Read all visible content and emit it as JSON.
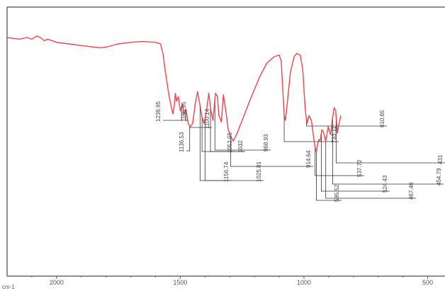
{
  "chart_data": {
    "type": "line",
    "title": "",
    "xlabel": "cm-1",
    "ylabel": "",
    "x_reversed": true,
    "xlim": [
      2200,
      430
    ],
    "ylim": [
      0,
      100
    ],
    "grid": false,
    "line_color": "#e8323a",
    "x_ticks": [
      {
        "value": 2000,
        "label": "2000"
      },
      {
        "value": 1500,
        "label": "1500"
      },
      {
        "value": 1000,
        "label": "1000"
      },
      {
        "value": 500,
        "label": "500"
      }
    ],
    "series": [
      {
        "points": [
          [
            2200,
            92
          ],
          [
            2150,
            91
          ],
          [
            2120,
            92
          ],
          [
            2100,
            91
          ],
          [
            2080,
            93
          ],
          [
            2065,
            92
          ],
          [
            2050,
            90
          ],
          [
            2035,
            91
          ],
          [
            2000,
            89
          ],
          [
            1950,
            88
          ],
          [
            1900,
            87
          ],
          [
            1850,
            86
          ],
          [
            1820,
            85.5
          ],
          [
            1800,
            86
          ],
          [
            1750,
            88
          ],
          [
            1700,
            89
          ],
          [
            1650,
            89.5
          ],
          [
            1600,
            89
          ],
          [
            1580,
            88
          ],
          [
            1570,
            82
          ],
          [
            1560,
            70
          ],
          [
            1545,
            55
          ],
          [
            1530,
            44
          ],
          [
            1525,
            48
          ],
          [
            1520,
            57
          ],
          [
            1515,
            52
          ],
          [
            1508,
            55
          ],
          [
            1500,
            46
          ],
          [
            1492,
            50
          ],
          [
            1485,
            44
          ],
          [
            1477,
            47
          ],
          [
            1468,
            38
          ],
          [
            1460,
            36
          ],
          [
            1450,
            38
          ],
          [
            1440,
            50
          ],
          [
            1430,
            58
          ],
          [
            1422,
            51
          ],
          [
            1412,
            42
          ],
          [
            1404,
            38
          ],
          [
            1394,
            46
          ],
          [
            1385,
            57
          ],
          [
            1376,
            46
          ],
          [
            1368,
            40
          ],
          [
            1358,
            57
          ],
          [
            1350,
            55
          ],
          [
            1344,
            43
          ],
          [
            1334,
            39
          ],
          [
            1326,
            56
          ],
          [
            1316,
            46
          ],
          [
            1306,
            34
          ],
          [
            1296,
            30
          ],
          [
            1286,
            27
          ],
          [
            1270,
            32
          ],
          [
            1250,
            40
          ],
          [
            1220,
            52
          ],
          [
            1180,
            67
          ],
          [
            1150,
            76
          ],
          [
            1120,
            80
          ],
          [
            1100,
            81
          ],
          [
            1092,
            77
          ],
          [
            1086,
            60
          ],
          [
            1080,
            43
          ],
          [
            1075,
            40
          ],
          [
            1068,
            50
          ],
          [
            1055,
            70
          ],
          [
            1040,
            80
          ],
          [
            1030,
            82
          ],
          [
            1015,
            81
          ],
          [
            1005,
            72
          ],
          [
            995,
            47
          ],
          [
            988,
            38
          ],
          [
            980,
            43
          ],
          [
            970,
            40
          ],
          [
            962,
            30
          ],
          [
            955,
            23
          ],
          [
            950,
            20
          ],
          [
            945,
            25
          ],
          [
            940,
            28
          ],
          [
            935,
            27
          ],
          [
            928,
            34
          ],
          [
            922,
            33
          ],
          [
            912,
            27
          ],
          [
            902,
            36
          ],
          [
            892,
            31
          ],
          [
            884,
            42
          ],
          [
            878,
            48
          ],
          [
            872,
            46
          ],
          [
            865,
            32
          ],
          [
            860,
            37
          ],
          [
            855,
            40
          ],
          [
            851,
            43
          ]
        ]
      }
    ],
    "peaks": [
      {
        "label": "1236.95",
        "x": 1495
      },
      {
        "label": "1165.95",
        "x": 1478
      },
      {
        "label": "1100.14",
        "x": 1460
      },
      {
        "label": "1136.53",
        "x": 1462
      },
      {
        "label": "1052.65",
        "x": 1412
      },
      {
        "label": "1032",
        "x": 1378
      },
      {
        "label": "968.93",
        "x": 1360
      },
      {
        "label": "1156.74",
        "x": 1420
      },
      {
        "label": "1025.81",
        "x": 1400
      },
      {
        "label": "914.64",
        "x": 1296
      },
      {
        "label": "733.11",
        "x": 1080
      },
      {
        "label": "610.65",
        "x": 990
      },
      {
        "label": "537.72",
        "x": 955
      },
      {
        "label": "524.43",
        "x": 930
      },
      {
        "label": "595.52",
        "x": 950
      },
      {
        "label": "467.46",
        "x": 912
      },
      {
        "label": "454.79",
        "x": 884
      },
      {
        "label": "431",
        "x": 870
      }
    ]
  }
}
